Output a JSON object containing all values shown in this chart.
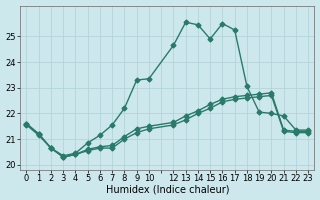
{
  "xlabel": "Humidex (Indice chaleur)",
  "background_color": "#cde8ed",
  "grid_color": "#b0d0d5",
  "line_color": "#2a7a6a",
  "xlim": [
    -0.5,
    23.5
  ],
  "ylim": [
    19.8,
    26.2
  ],
  "yticks": [
    20,
    21,
    22,
    23,
    24,
    25
  ],
  "xtick_positions": [
    0,
    1,
    2,
    3,
    4,
    5,
    6,
    7,
    8,
    9,
    10,
    11,
    12,
    13,
    14,
    15,
    16,
    17,
    18,
    19,
    20,
    21,
    22,
    23
  ],
  "xtick_labels": [
    "0",
    "1",
    "2",
    "3",
    "4",
    "5",
    "6",
    "7",
    "8",
    "9",
    "10",
    "",
    "12",
    "13",
    "14",
    "15",
    "16",
    "17",
    "18",
    "19",
    "20",
    "21",
    "22",
    "23"
  ],
  "line1_x": [
    0,
    1,
    2,
    3,
    4,
    5,
    6,
    7,
    8,
    9,
    10,
    12,
    13,
    14,
    15,
    16,
    17,
    18,
    19,
    20,
    21,
    22,
    23
  ],
  "line1_y": [
    21.6,
    21.2,
    20.65,
    20.3,
    20.4,
    20.6,
    20.7,
    20.75,
    21.1,
    21.4,
    21.5,
    21.65,
    21.9,
    22.1,
    22.35,
    22.55,
    22.65,
    22.7,
    22.75,
    22.8,
    21.35,
    21.3,
    21.3
  ],
  "line2_x": [
    0,
    1,
    2,
    3,
    4,
    5,
    6,
    7,
    8,
    9,
    10,
    12,
    13,
    14,
    15,
    16,
    17,
    18,
    19,
    20,
    21,
    22,
    23
  ],
  "line2_y": [
    21.6,
    21.2,
    20.65,
    20.35,
    20.45,
    20.85,
    21.15,
    21.55,
    22.2,
    23.3,
    23.35,
    24.65,
    25.55,
    25.45,
    24.9,
    25.5,
    25.25,
    23.05,
    22.05,
    22.0,
    21.9,
    21.35,
    21.35
  ],
  "line3_x": [
    0,
    1,
    2,
    3,
    4,
    5,
    6,
    7,
    8,
    9,
    10,
    12,
    13,
    14,
    15,
    16,
    17,
    18,
    19,
    20,
    21,
    22,
    23
  ],
  "line3_y": [
    21.55,
    21.15,
    20.65,
    20.3,
    20.4,
    20.55,
    20.65,
    20.65,
    21.0,
    21.25,
    21.4,
    21.55,
    21.75,
    22.0,
    22.2,
    22.45,
    22.55,
    22.6,
    22.65,
    22.7,
    21.3,
    21.25,
    21.25
  ],
  "marker_size": 2.5,
  "line_width": 1.0,
  "title_fontsize": 7,
  "label_fontsize": 7,
  "tick_fontsize": 6
}
